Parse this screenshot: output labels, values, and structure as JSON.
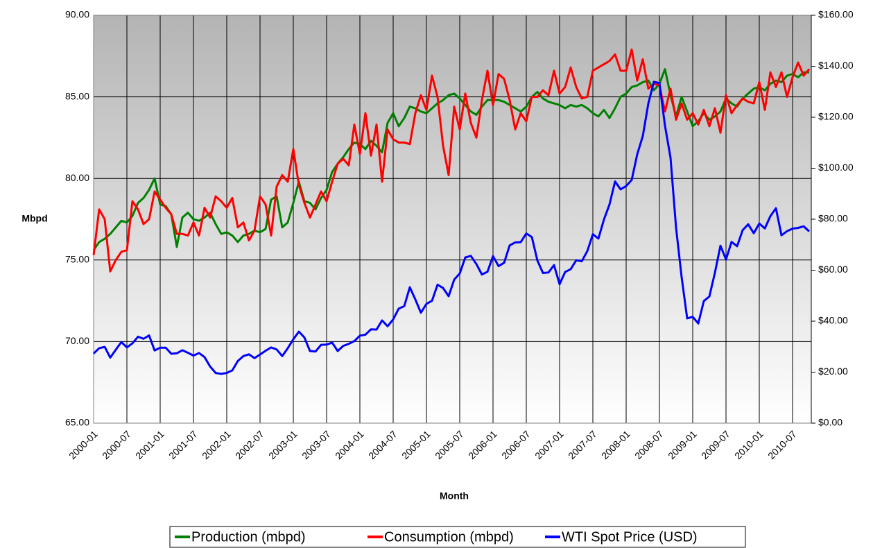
{
  "chart_data": {
    "type": "line",
    "y_label": "Mbpd",
    "x_label": "Month",
    "categories": [
      "2000-01",
      null,
      null,
      null,
      null,
      null,
      "2000-07",
      null,
      null,
      null,
      null,
      null,
      "2001-01",
      null,
      null,
      null,
      null,
      null,
      "2001-07",
      null,
      null,
      null,
      null,
      null,
      "2002-01",
      null,
      null,
      null,
      null,
      null,
      "2002-07",
      null,
      null,
      null,
      null,
      null,
      "2003-01",
      null,
      null,
      null,
      null,
      null,
      "2003-07",
      null,
      null,
      null,
      null,
      null,
      "2004-01",
      null,
      null,
      null,
      null,
      null,
      "2004-07",
      null,
      null,
      null,
      null,
      null,
      "2005-01",
      null,
      null,
      null,
      null,
      null,
      "2005-07",
      null,
      null,
      null,
      null,
      null,
      "2006-01",
      null,
      null,
      null,
      null,
      null,
      "2006-07",
      null,
      null,
      null,
      null,
      null,
      "2007-01",
      null,
      null,
      null,
      null,
      null,
      "2007-07",
      null,
      null,
      null,
      null,
      null,
      "2008-01",
      null,
      null,
      null,
      null,
      null,
      "2008-07",
      null,
      null,
      null,
      null,
      null,
      "2009-01",
      null,
      null,
      null,
      null,
      null,
      "2009-07",
      null,
      null,
      null,
      null,
      null,
      "2010-01",
      null,
      null,
      null,
      null,
      null,
      "2010-07",
      null,
      null,
      null
    ],
    "ylim": [
      65,
      90
    ],
    "yticks": [
      {
        "value": 65,
        "label": "65.00"
      },
      {
        "value": 70,
        "label": "70.00"
      },
      {
        "value": 75,
        "label": "75.00"
      },
      {
        "value": 80,
        "label": "80.00"
      },
      {
        "value": 85,
        "label": "85.00"
      },
      {
        "value": 90,
        "label": "90.00"
      }
    ],
    "y2lim": [
      0,
      160
    ],
    "y2ticks": [
      {
        "value": 0,
        "label": "$0.00"
      },
      {
        "value": 20,
        "label": "$20.00"
      },
      {
        "value": 40,
        "label": "$40.00"
      },
      {
        "value": 60,
        "label": "$60.00"
      },
      {
        "value": 80,
        "label": "$80.00"
      },
      {
        "value": 100,
        "label": "$100.00"
      },
      {
        "value": 120,
        "label": "$120.00"
      },
      {
        "value": 140,
        "label": "$140.00"
      },
      {
        "value": 160,
        "label": "$160.00"
      }
    ],
    "grid": true,
    "legend": "bottom",
    "series": [
      {
        "name": "Production (mbpd)",
        "color": "#008000",
        "values": [
          75.6,
          76.1,
          76.3,
          76.6,
          77.0,
          77.4,
          77.3,
          77.7,
          78.5,
          78.8,
          79.3,
          80.0,
          78.4,
          78.3,
          77.8,
          75.8,
          77.6,
          77.9,
          77.5,
          77.4,
          77.6,
          77.9,
          77.2,
          76.6,
          76.7,
          76.5,
          76.1,
          76.5,
          76.6,
          76.8,
          76.7,
          76.9,
          78.7,
          78.9,
          77.0,
          77.3,
          78.5,
          79.8,
          78.6,
          78.5,
          78.1,
          78.8,
          79.3,
          80.4,
          80.9,
          81.3,
          81.8,
          82.2,
          82.1,
          81.8,
          82.3,
          82.0,
          81.6,
          83.4,
          84.0,
          83.2,
          83.7,
          84.4,
          84.3,
          84.1,
          84.0,
          84.3,
          84.6,
          84.8,
          85.1,
          85.2,
          84.9,
          84.5,
          84.1,
          83.9,
          84.4,
          84.8,
          84.8,
          84.8,
          84.7,
          84.5,
          84.3,
          84.1,
          84.4,
          85.0,
          85.3,
          84.9,
          84.7,
          84.6,
          84.5,
          84.3,
          84.5,
          84.4,
          84.5,
          84.3,
          84.0,
          83.8,
          84.2,
          83.7,
          84.3,
          85.0,
          85.2,
          85.6,
          85.7,
          85.9,
          86.0,
          85.4,
          85.8,
          86.7,
          85.1,
          83.8,
          85.0,
          84.1,
          83.2,
          83.5,
          84.0,
          83.6,
          83.8,
          84.1,
          84.9,
          84.6,
          84.4,
          84.9,
          85.2,
          85.5,
          85.6,
          85.4,
          85.8,
          86.0,
          85.9,
          86.3,
          86.4,
          86.2,
          86.5,
          86.5
        ]
      },
      {
        "name": "Consumption (mbpd)",
        "color": "#ff0000",
        "values": [
          75.3,
          78.1,
          77.5,
          74.3,
          75.0,
          75.5,
          75.6,
          78.6,
          78.1,
          77.2,
          77.5,
          79.2,
          78.7,
          78.2,
          77.8,
          76.6,
          76.6,
          76.5,
          77.3,
          76.5,
          78.2,
          77.6,
          78.9,
          78.6,
          78.2,
          78.8,
          77.0,
          77.3,
          76.2,
          76.8,
          78.9,
          78.4,
          76.5,
          79.5,
          80.2,
          79.8,
          81.8,
          79.6,
          78.5,
          77.6,
          78.4,
          79.2,
          78.6,
          79.8,
          80.9,
          81.2,
          80.8,
          83.3,
          81.5,
          84.0,
          81.4,
          83.3,
          79.8,
          83.0,
          82.4,
          82.2,
          82.2,
          82.1,
          84.0,
          85.1,
          84.2,
          86.3,
          85.0,
          82.0,
          80.2,
          84.4,
          83.0,
          85.2,
          83.4,
          82.5,
          84.8,
          86.6,
          84.5,
          86.4,
          86.1,
          84.8,
          83.0,
          84.0,
          83.5,
          85.0,
          85.0,
          85.4,
          85.1,
          86.6,
          85.2,
          85.6,
          86.8,
          85.6,
          84.9,
          85.0,
          86.6,
          86.8,
          87.0,
          87.2,
          87.6,
          86.6,
          86.6,
          87.9,
          86.0,
          87.3,
          85.5,
          85.8,
          85.7,
          84.1,
          85.5,
          83.6,
          84.6,
          83.6,
          84.0,
          83.3,
          84.2,
          83.2,
          84.3,
          82.8,
          85.1,
          84.0,
          84.5,
          84.9,
          84.7,
          84.6,
          85.9,
          84.2,
          86.5,
          85.6,
          86.5,
          85.0,
          86.2,
          87.1,
          86.3,
          86.7
        ]
      },
      {
        "name": "WTI Spot Price (USD)",
        "color": "#0000ff",
        "axis": "y2",
        "values": [
          27.3,
          29.4,
          29.9,
          25.7,
          28.8,
          31.8,
          29.7,
          31.3,
          33.9,
          33.1,
          34.4,
          28.5,
          29.6,
          29.6,
          27.2,
          27.4,
          28.6,
          27.6,
          26.5,
          27.5,
          25.9,
          22.2,
          19.7,
          19.3,
          19.7,
          20.7,
          24.4,
          26.3,
          27.0,
          25.5,
          26.9,
          28.4,
          29.7,
          28.9,
          26.3,
          29.4,
          32.9,
          35.9,
          33.6,
          28.3,
          28.1,
          30.7,
          30.8,
          31.6,
          28.3,
          30.3,
          31.1,
          32.2,
          34.3,
          34.7,
          36.8,
          36.7,
          40.3,
          38.0,
          40.7,
          44.9,
          45.9,
          53.3,
          48.5,
          43.3,
          46.8,
          48.0,
          54.3,
          53.0,
          49.8,
          56.3,
          58.7,
          65.0,
          65.6,
          62.4,
          58.3,
          59.4,
          65.5,
          61.6,
          62.9,
          69.7,
          70.9,
          71.0,
          74.4,
          73.0,
          63.8,
          58.9,
          59.1,
          62.0,
          54.5,
          59.3,
          60.4,
          63.9,
          63.5,
          67.5,
          74.1,
          72.4,
          79.9,
          85.8,
          94.8,
          91.7,
          93.0,
          95.4,
          105.5,
          112.6,
          125.4,
          133.9,
          133.4,
          116.7,
          104.1,
          76.6,
          57.3,
          41.1,
          41.7,
          39.1,
          47.9,
          49.7,
          59.0,
          69.6,
          64.2,
          71.1,
          69.4,
          75.7,
          78.0,
          74.5,
          78.3,
          76.4,
          81.2,
          84.3,
          73.7,
          75.3,
          76.3,
          76.6,
          77.2,
          75.2
        ]
      }
    ]
  }
}
